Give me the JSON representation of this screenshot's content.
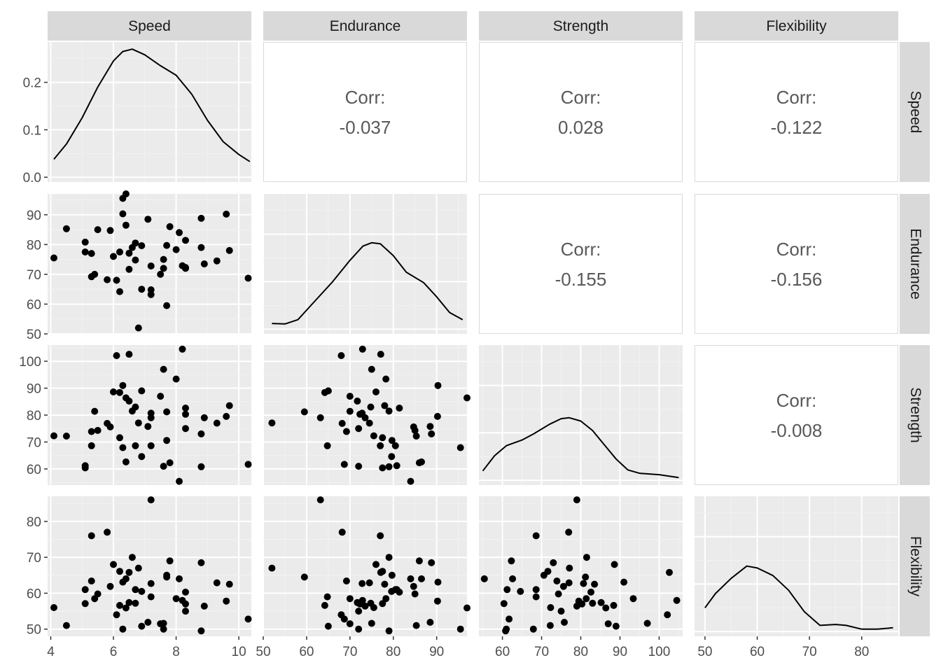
{
  "chart_data": {
    "type": "scatter",
    "subtype": "pairs-matrix",
    "variables": [
      "Speed",
      "Endurance",
      "Strength",
      "Flexibility"
    ],
    "axes": {
      "Speed": {
        "range": [
          3.9,
          10.4
        ],
        "ticks": [
          4,
          6,
          8,
          10
        ]
      },
      "Endurance": {
        "range": [
          50,
          97
        ],
        "ticks": [
          50,
          60,
          70,
          80,
          90
        ]
      },
      "Strength": {
        "range": [
          54,
          106
        ],
        "ticks": [
          60,
          70,
          80,
          90,
          100
        ]
      },
      "Flexibility": {
        "range": [
          48,
          87
        ],
        "ticks": [
          50,
          60,
          70,
          80
        ]
      }
    },
    "density_axis": {
      "range": [
        -0.01,
        0.285
      ],
      "ticks": [
        0.0,
        0.1,
        0.2
      ],
      "tick_labels": [
        "0.0",
        "0.1",
        "0.2"
      ]
    },
    "correlation_label": "Corr:",
    "correlations": {
      "Speed_Endurance": "-0.037",
      "Speed_Strength": "0.028",
      "Speed_Flexibility": "-0.122",
      "Endurance_Strength": "-0.155",
      "Endurance_Flexibility": "-0.156",
      "Strength_Flexibility": "-0.008"
    },
    "speed_density": [
      [
        4.1,
        0.038
      ],
      [
        4.5,
        0.07
      ],
      [
        5.0,
        0.125
      ],
      [
        5.5,
        0.19
      ],
      [
        6.0,
        0.245
      ],
      [
        6.3,
        0.265
      ],
      [
        6.6,
        0.27
      ],
      [
        7.0,
        0.258
      ],
      [
        7.5,
        0.235
      ],
      [
        8.0,
        0.215
      ],
      [
        8.5,
        0.175
      ],
      [
        9.0,
        0.12
      ],
      [
        9.5,
        0.075
      ],
      [
        10.0,
        0.048
      ],
      [
        10.35,
        0.033
      ]
    ],
    "endurance_density": [
      [
        52,
        0.012
      ],
      [
        55,
        0.011
      ],
      [
        58,
        0.02
      ],
      [
        62,
        0.06
      ],
      [
        66,
        0.1
      ],
      [
        70,
        0.145
      ],
      [
        73,
        0.175
      ],
      [
        75,
        0.182
      ],
      [
        77,
        0.18
      ],
      [
        80,
        0.155
      ],
      [
        83,
        0.12
      ],
      [
        87,
        0.098
      ],
      [
        90,
        0.068
      ],
      [
        93,
        0.035
      ],
      [
        96,
        0.02
      ]
    ],
    "strength_density": [
      [
        55,
        0.02
      ],
      [
        58,
        0.052
      ],
      [
        61,
        0.073
      ],
      [
        65,
        0.085
      ],
      [
        68,
        0.098
      ],
      [
        72,
        0.118
      ],
      [
        75,
        0.13
      ],
      [
        77,
        0.132
      ],
      [
        80,
        0.125
      ],
      [
        83,
        0.105
      ],
      [
        86,
        0.075
      ],
      [
        89,
        0.045
      ],
      [
        92,
        0.022
      ],
      [
        95,
        0.015
      ],
      [
        100,
        0.012
      ],
      [
        105,
        0.006
      ]
    ],
    "flexibility_density": [
      [
        50,
        0.05
      ],
      [
        52,
        0.08
      ],
      [
        55,
        0.112
      ],
      [
        58,
        0.138
      ],
      [
        60,
        0.134
      ],
      [
        63,
        0.118
      ],
      [
        66,
        0.087
      ],
      [
        69,
        0.042
      ],
      [
        72,
        0.013
      ],
      [
        75,
        0.015
      ],
      [
        77,
        0.013
      ],
      [
        80,
        0.005
      ],
      [
        83,
        0.005
      ],
      [
        86,
        0.008
      ]
    ],
    "observations": [
      [
        4.1,
        75.5,
        72.3,
        56.0
      ],
      [
        4.5,
        85.3,
        72.2,
        51.0
      ],
      [
        5.1,
        80.8,
        61.2,
        61.0
      ],
      [
        5.1,
        77.5,
        60.4,
        57.1
      ],
      [
        5.3,
        77.0,
        68.6,
        76.0
      ],
      [
        5.3,
        69.2,
        73.9,
        63.4
      ],
      [
        5.4,
        70.0,
        81.4,
        58.5
      ],
      [
        5.5,
        85.0,
        74.3,
        59.8
      ],
      [
        5.8,
        68.2,
        76.9,
        77.0
      ],
      [
        5.9,
        84.7,
        75.6,
        61.9
      ],
      [
        6.0,
        76.0,
        88.6,
        68.0
      ],
      [
        6.1,
        68.0,
        102.1,
        54.0
      ],
      [
        6.2,
        77.5,
        71.6,
        66.1
      ],
      [
        6.2,
        64.2,
        88.4,
        56.6
      ],
      [
        6.3,
        90.3,
        91.0,
        63.1
      ],
      [
        6.3,
        95.5,
        67.9,
        50.0
      ],
      [
        6.4,
        97.0,
        86.4,
        55.9
      ],
      [
        6.4,
        86.5,
        62.6,
        64.0
      ],
      [
        6.5,
        77.1,
        102.6,
        65.8
      ],
      [
        6.5,
        71.7,
        85.2,
        57.4
      ],
      [
        6.6,
        79.0,
        81.5,
        70.0
      ],
      [
        6.7,
        80.5,
        68.6,
        61.0
      ],
      [
        6.7,
        74.8,
        83.0,
        57.2
      ],
      [
        6.8,
        52.0,
        77.1,
        67.0
      ],
      [
        6.9,
        79.6,
        64.6,
        60.5
      ],
      [
        6.9,
        65.0,
        89.0,
        50.8
      ],
      [
        7.1,
        88.5,
        75.8,
        51.9
      ],
      [
        7.2,
        72.8,
        80.7,
        62.7
      ],
      [
        7.2,
        63.2,
        79.0,
        86.0
      ],
      [
        7.2,
        64.8,
        68.6,
        59.0
      ],
      [
        7.5,
        70.0,
        87.0,
        51.5
      ],
      [
        7.6,
        72.0,
        61.0,
        50.0
      ],
      [
        7.6,
        75.0,
        97.0,
        51.6
      ],
      [
        7.7,
        79.7,
        70.6,
        65.0
      ],
      [
        7.7,
        59.5,
        81.2,
        64.5
      ],
      [
        7.8,
        86.0,
        62.3,
        69.0
      ],
      [
        8.0,
        78.3,
        93.4,
        58.5
      ],
      [
        8.1,
        84.0,
        55.4,
        64.0
      ],
      [
        8.2,
        72.9,
        104.5,
        58.0
      ],
      [
        8.3,
        81.4,
        82.6,
        60.3
      ],
      [
        8.3,
        72.0,
        75.0,
        55.0
      ],
      [
        8.3,
        72.3,
        80.3,
        57.0
      ],
      [
        8.8,
        88.8,
        73.0,
        68.5
      ],
      [
        8.8,
        79.0,
        60.8,
        49.5
      ],
      [
        8.9,
        73.5,
        79.0,
        56.4
      ],
      [
        9.3,
        74.5,
        77.0,
        62.9
      ],
      [
        9.6,
        90.2,
        79.5,
        57.8
      ],
      [
        9.7,
        78.0,
        83.5,
        62.5
      ],
      [
        10.3,
        68.7,
        61.7,
        52.8
      ]
    ]
  }
}
